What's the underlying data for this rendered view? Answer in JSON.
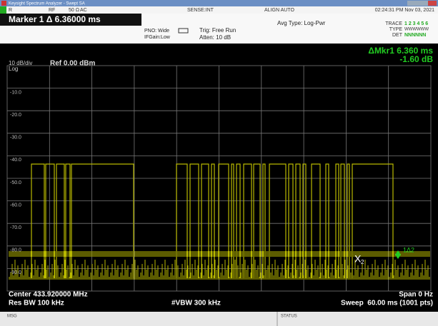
{
  "window": {
    "title": "Keysight Spectrum Analyzer - Swept SA"
  },
  "status_bar": {
    "input": "R",
    "rf": "RF",
    "impedance": "50 Ω",
    "coupling": "AC",
    "sense": "SENSE:INT",
    "align": "ALIGN AUTO",
    "datetime": "02:24:31 PM Nov 03, 2021"
  },
  "header": {
    "marker": "Marker 1 Δ 6.36000 ms",
    "pno": "PNO: Wide",
    "ifgain": "IFGain:Low",
    "trig": "Trig: Free Run",
    "atten": "Atten: 10 dB",
    "avg_type": "Avg Type: Log-Pwr",
    "trace_label": "TRACE",
    "trace_value": "1 2 3 4 5 6",
    "type_label": "TYPE",
    "type_value": "WWWWWW",
    "det_label": "DET",
    "det_value": "NNNNNN"
  },
  "display": {
    "scale": "10 dB/div",
    "scale_type": "Log",
    "ref": "Ref 0.00 dBm",
    "delta_marker": "ΔMkr1 6.360 ms",
    "delta_value": "-1.60 dB",
    "y_labels": [
      "-10.0",
      "-20.0",
      "-30.0",
      "-40.0",
      "-50.0",
      "-60.0",
      "-70.0",
      "-80.0",
      "-90.0"
    ],
    "marker_x": "X",
    "marker_x_index": "2",
    "marker_delta": "1Δ2"
  },
  "footer": {
    "center": "Center 433.920000 MHz",
    "res_bw": "Res BW 100 kHz",
    "vbw": "#VBW 300 kHz",
    "span": "Span 0 Hz",
    "sweep": "Sweep  60.00 ms (1001 pts)"
  },
  "message_bar": {
    "msg": "MSG",
    "status": "STATUS"
  }
}
